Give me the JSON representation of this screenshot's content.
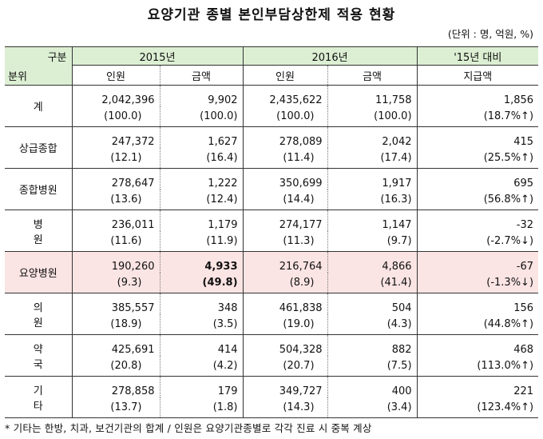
{
  "title": "요양기관 종별 본인부담상한제 적용 현황",
  "unit": "(단위 : 명, 억원, %)",
  "header": {
    "corner_top": "구분",
    "corner_bottom": "분위",
    "year1": "2015년",
    "year2": "2016년",
    "compare_line1": "'15년 대비",
    "compare_line2": "지급액",
    "col_people": "인원",
    "col_amount": "금액"
  },
  "rows": [
    {
      "label": "계",
      "p15": "2,042,396",
      "p15r": "(100.0)",
      "a15": "9,902",
      "a15r": "(100.0)",
      "p16": "2,435,622",
      "p16r": "(100.0)",
      "a16": "11,758",
      "a16r": "(100.0)",
      "diff": "1,856",
      "diffr": "(18.7%↑)"
    },
    {
      "label": "상급종합",
      "p15": "247,372",
      "p15r": "(12.1)",
      "a15": "1,627",
      "a15r": "(16.4)",
      "p16": "278,089",
      "p16r": "(11.4)",
      "a16": "2,042",
      "a16r": "(17.4)",
      "diff": "415",
      "diffr": "(25.5%↑)"
    },
    {
      "label": "종합병원",
      "p15": "278,647",
      "p15r": "(13.6)",
      "a15": "1,222",
      "a15r": "(12.4)",
      "p16": "350,699",
      "p16r": "(14.4)",
      "a16": "1,917",
      "a16r": "(16.3)",
      "diff": "695",
      "diffr": "(56.8%↑)"
    },
    {
      "label": "병 원",
      "p15": "236,011",
      "p15r": "(11.6)",
      "a15": "1,179",
      "a15r": "(11.9)",
      "p16": "274,177",
      "p16r": "(11.3)",
      "a16": "1,147",
      "a16r": "(9.7)",
      "diff": "-32",
      "diffr": "(-2.7%↓)"
    },
    {
      "label": "요양병원",
      "p15": "190,260",
      "p15r": "(9.3)",
      "a15": "4,933",
      "a15r": "(49.8)",
      "p16": "216,764",
      "p16r": "(8.9)",
      "a16": "4,866",
      "a16r": "(41.4)",
      "diff": "-67",
      "diffr": "(-1.3%↓)"
    },
    {
      "label": "의 원",
      "p15": "385,557",
      "p15r": "(18.9)",
      "a15": "348",
      "a15r": "(3.5)",
      "p16": "461,838",
      "p16r": "(19.0)",
      "a16": "504",
      "a16r": "(4.3)",
      "diff": "156",
      "diffr": "(44.8%↑)"
    },
    {
      "label": "약 국",
      "p15": "425,691",
      "p15r": "(20.8)",
      "a15": "414",
      "a15r": "(4.2)",
      "p16": "504,328",
      "p16r": "(20.7)",
      "a16": "882",
      "a16r": "(7.5)",
      "diff": "468",
      "diffr": "(113.0%↑)"
    },
    {
      "label": "기 타",
      "p15": "278,858",
      "p15r": "(13.7)",
      "a15": "179",
      "a15r": "(1.8)",
      "p16": "349,727",
      "p16r": "(14.3)",
      "a16": "400",
      "a16r": "(3.4)",
      "diff": "221",
      "diffr": "(123.4%↑)"
    }
  ],
  "highlight_color": "#fbe4e4",
  "header_color": "#dcefd3",
  "footnote": "* 기타는 한방, 치과, 보건기관의 합계 / 인원은 요양기관종별로 각각 진료 시 중복 계상"
}
